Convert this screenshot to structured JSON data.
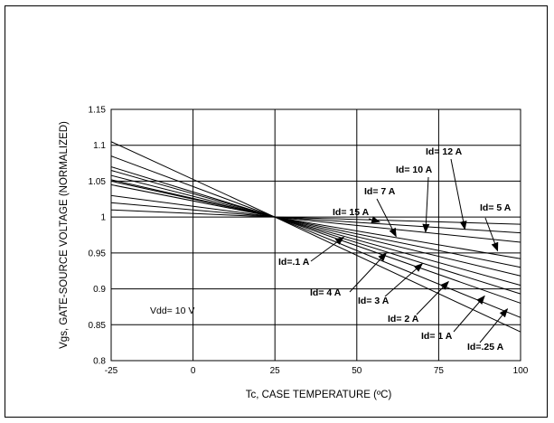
{
  "chart_data": {
    "type": "line",
    "title": "",
    "xlabel": "Tc, CASE TEMPERATURE (ºC)",
    "ylabel": "Vgs, GATE-SOURCE VOLTAGE (NORMALIZED)",
    "xlim": [
      -25,
      100
    ],
    "ylim": [
      0.8,
      1.15
    ],
    "xticks": [
      -25,
      0,
      25,
      50,
      75,
      100
    ],
    "yticks": [
      0.8,
      0.85,
      0.9,
      0.95,
      1,
      1.05,
      1.1,
      1.15
    ],
    "xtick_labels": [
      "-25",
      "0",
      "25",
      "50",
      "75",
      "100"
    ],
    "ytick_labels": [
      "0.8",
      "0.85",
      "0.9",
      "0.95",
      "1",
      "1.05",
      "1.1",
      "1.15"
    ],
    "grid": true,
    "annotation": "Vdd= 10 V",
    "series": [
      {
        "name": "Id=.25 A",
        "x": [
          -25,
          25,
          100
        ],
        "y": [
          1.105,
          1.0,
          0.84
        ]
      },
      {
        "name": "Id= 1 A",
        "x": [
          -25,
          25,
          100
        ],
        "y": [
          1.085,
          1.0,
          0.86
        ]
      },
      {
        "name": "Id= 2 A",
        "x": [
          -25,
          25,
          100
        ],
        "y": [
          1.07,
          1.0,
          0.88
        ]
      },
      {
        "name": "Id= 3 A",
        "x": [
          -25,
          25,
          100
        ],
        "y": [
          1.065,
          1.0,
          0.893
        ]
      },
      {
        "name": "Id= 4 A",
        "x": [
          -25,
          25,
          100
        ],
        "y": [
          1.058,
          1.0,
          0.905
        ]
      },
      {
        "name": "Id=.1 A",
        "x": [
          -25,
          25,
          100
        ],
        "y": [
          1.052,
          1.0,
          0.918
        ]
      },
      {
        "name": "Id= 5 A",
        "x": [
          -25,
          25,
          100
        ],
        "y": [
          1.05,
          1.0,
          0.93
        ]
      },
      {
        "name": "Id= 7 A",
        "x": [
          -25,
          25,
          100
        ],
        "y": [
          1.045,
          1.0,
          0.942
        ]
      },
      {
        "name": "Id= 10 A",
        "x": [
          -25,
          25,
          100
        ],
        "y": [
          1.03,
          1.0,
          0.965
        ]
      },
      {
        "name": "Id= 12 A",
        "x": [
          -25,
          25,
          100
        ],
        "y": [
          1.02,
          1.0,
          0.978
        ]
      },
      {
        "name": "Id= 15 A",
        "x": [
          -25,
          25,
          100
        ],
        "y": [
          1.01,
          1.0,
          0.99
        ]
      }
    ],
    "labels": [
      {
        "text": "Id= 12 A",
        "tip": [
          83,
          0.983
        ]
      },
      {
        "text": "Id= 10 A",
        "tip": [
          71,
          0.979
        ]
      },
      {
        "text": "Id= 5 A",
        "tip": [
          93,
          0.953
        ]
      },
      {
        "text": "Id= 7 A",
        "tip": [
          62,
          0.973
        ]
      },
      {
        "text": "Id= 15 A",
        "tip": [
          57,
          0.993
        ]
      },
      {
        "text": "Id=.1 A",
        "tip": [
          46,
          0.972
        ]
      },
      {
        "text": "Id= 4 A",
        "tip": [
          59,
          0.95
        ]
      },
      {
        "text": "Id= 3 A",
        "tip": [
          70,
          0.935
        ]
      },
      {
        "text": "Id= 2 A",
        "tip": [
          78,
          0.91
        ]
      },
      {
        "text": "Id= 1 A",
        "tip": [
          89,
          0.89
        ]
      },
      {
        "text": "Id=.25 A",
        "tip": [
          96,
          0.872
        ]
      }
    ]
  }
}
